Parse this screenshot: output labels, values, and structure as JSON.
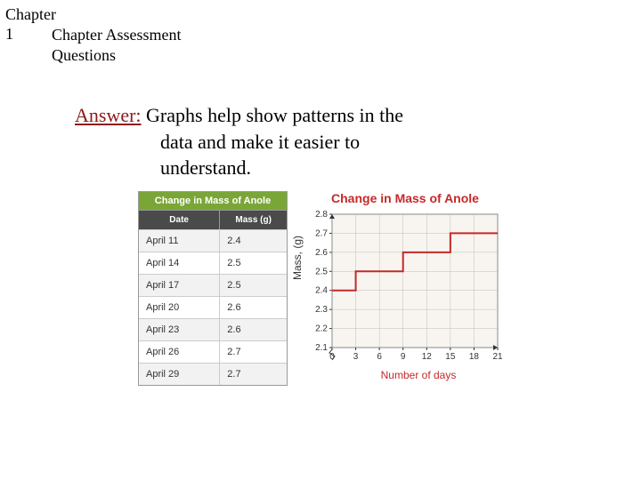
{
  "chapter": {
    "label": "Chapter",
    "number": "1"
  },
  "section": {
    "line1": "Chapter Assessment",
    "line2": "Questions"
  },
  "answer": {
    "label": "Answer:",
    "line1": "Graphs help show patterns in the",
    "line2": "data and make it easier to",
    "line3": "understand."
  },
  "table": {
    "title": "Change in Mass of Anole",
    "col1": "Date",
    "col2": "Mass (g)",
    "rows": [
      {
        "date": "April 11",
        "mass": "2.4"
      },
      {
        "date": "April 14",
        "mass": "2.5"
      },
      {
        "date": "April 17",
        "mass": "2.5"
      },
      {
        "date": "April 20",
        "mass": "2.6"
      },
      {
        "date": "April 23",
        "mass": "2.6"
      },
      {
        "date": "April 26",
        "mass": "2.7"
      },
      {
        "date": "April 29",
        "mass": "2.7"
      }
    ]
  },
  "chart": {
    "title": "Change in Mass of Anole",
    "ylabel": "Mass, (g)",
    "xlabel": "Number of days",
    "ylim": [
      2.1,
      2.8
    ],
    "yticks": [
      "2.1",
      "2.2",
      "2.3",
      "2.4",
      "2.5",
      "2.6",
      "2.7",
      "2.8"
    ],
    "xlim": [
      0,
      21
    ],
    "xticks": [
      "0",
      "3",
      "6",
      "9",
      "12",
      "15",
      "18",
      "21"
    ],
    "line_color": "#c62828",
    "grid_color": "#bdbdbd",
    "bg_color": "#f8f5f0",
    "data": [
      {
        "x": 0,
        "y": 2.4
      },
      {
        "x": 3,
        "y": 2.5
      },
      {
        "x": 6,
        "y": 2.5
      },
      {
        "x": 9,
        "y": 2.6
      },
      {
        "x": 12,
        "y": 2.6
      },
      {
        "x": 15,
        "y": 2.7
      },
      {
        "x": 18,
        "y": 2.7
      }
    ]
  }
}
